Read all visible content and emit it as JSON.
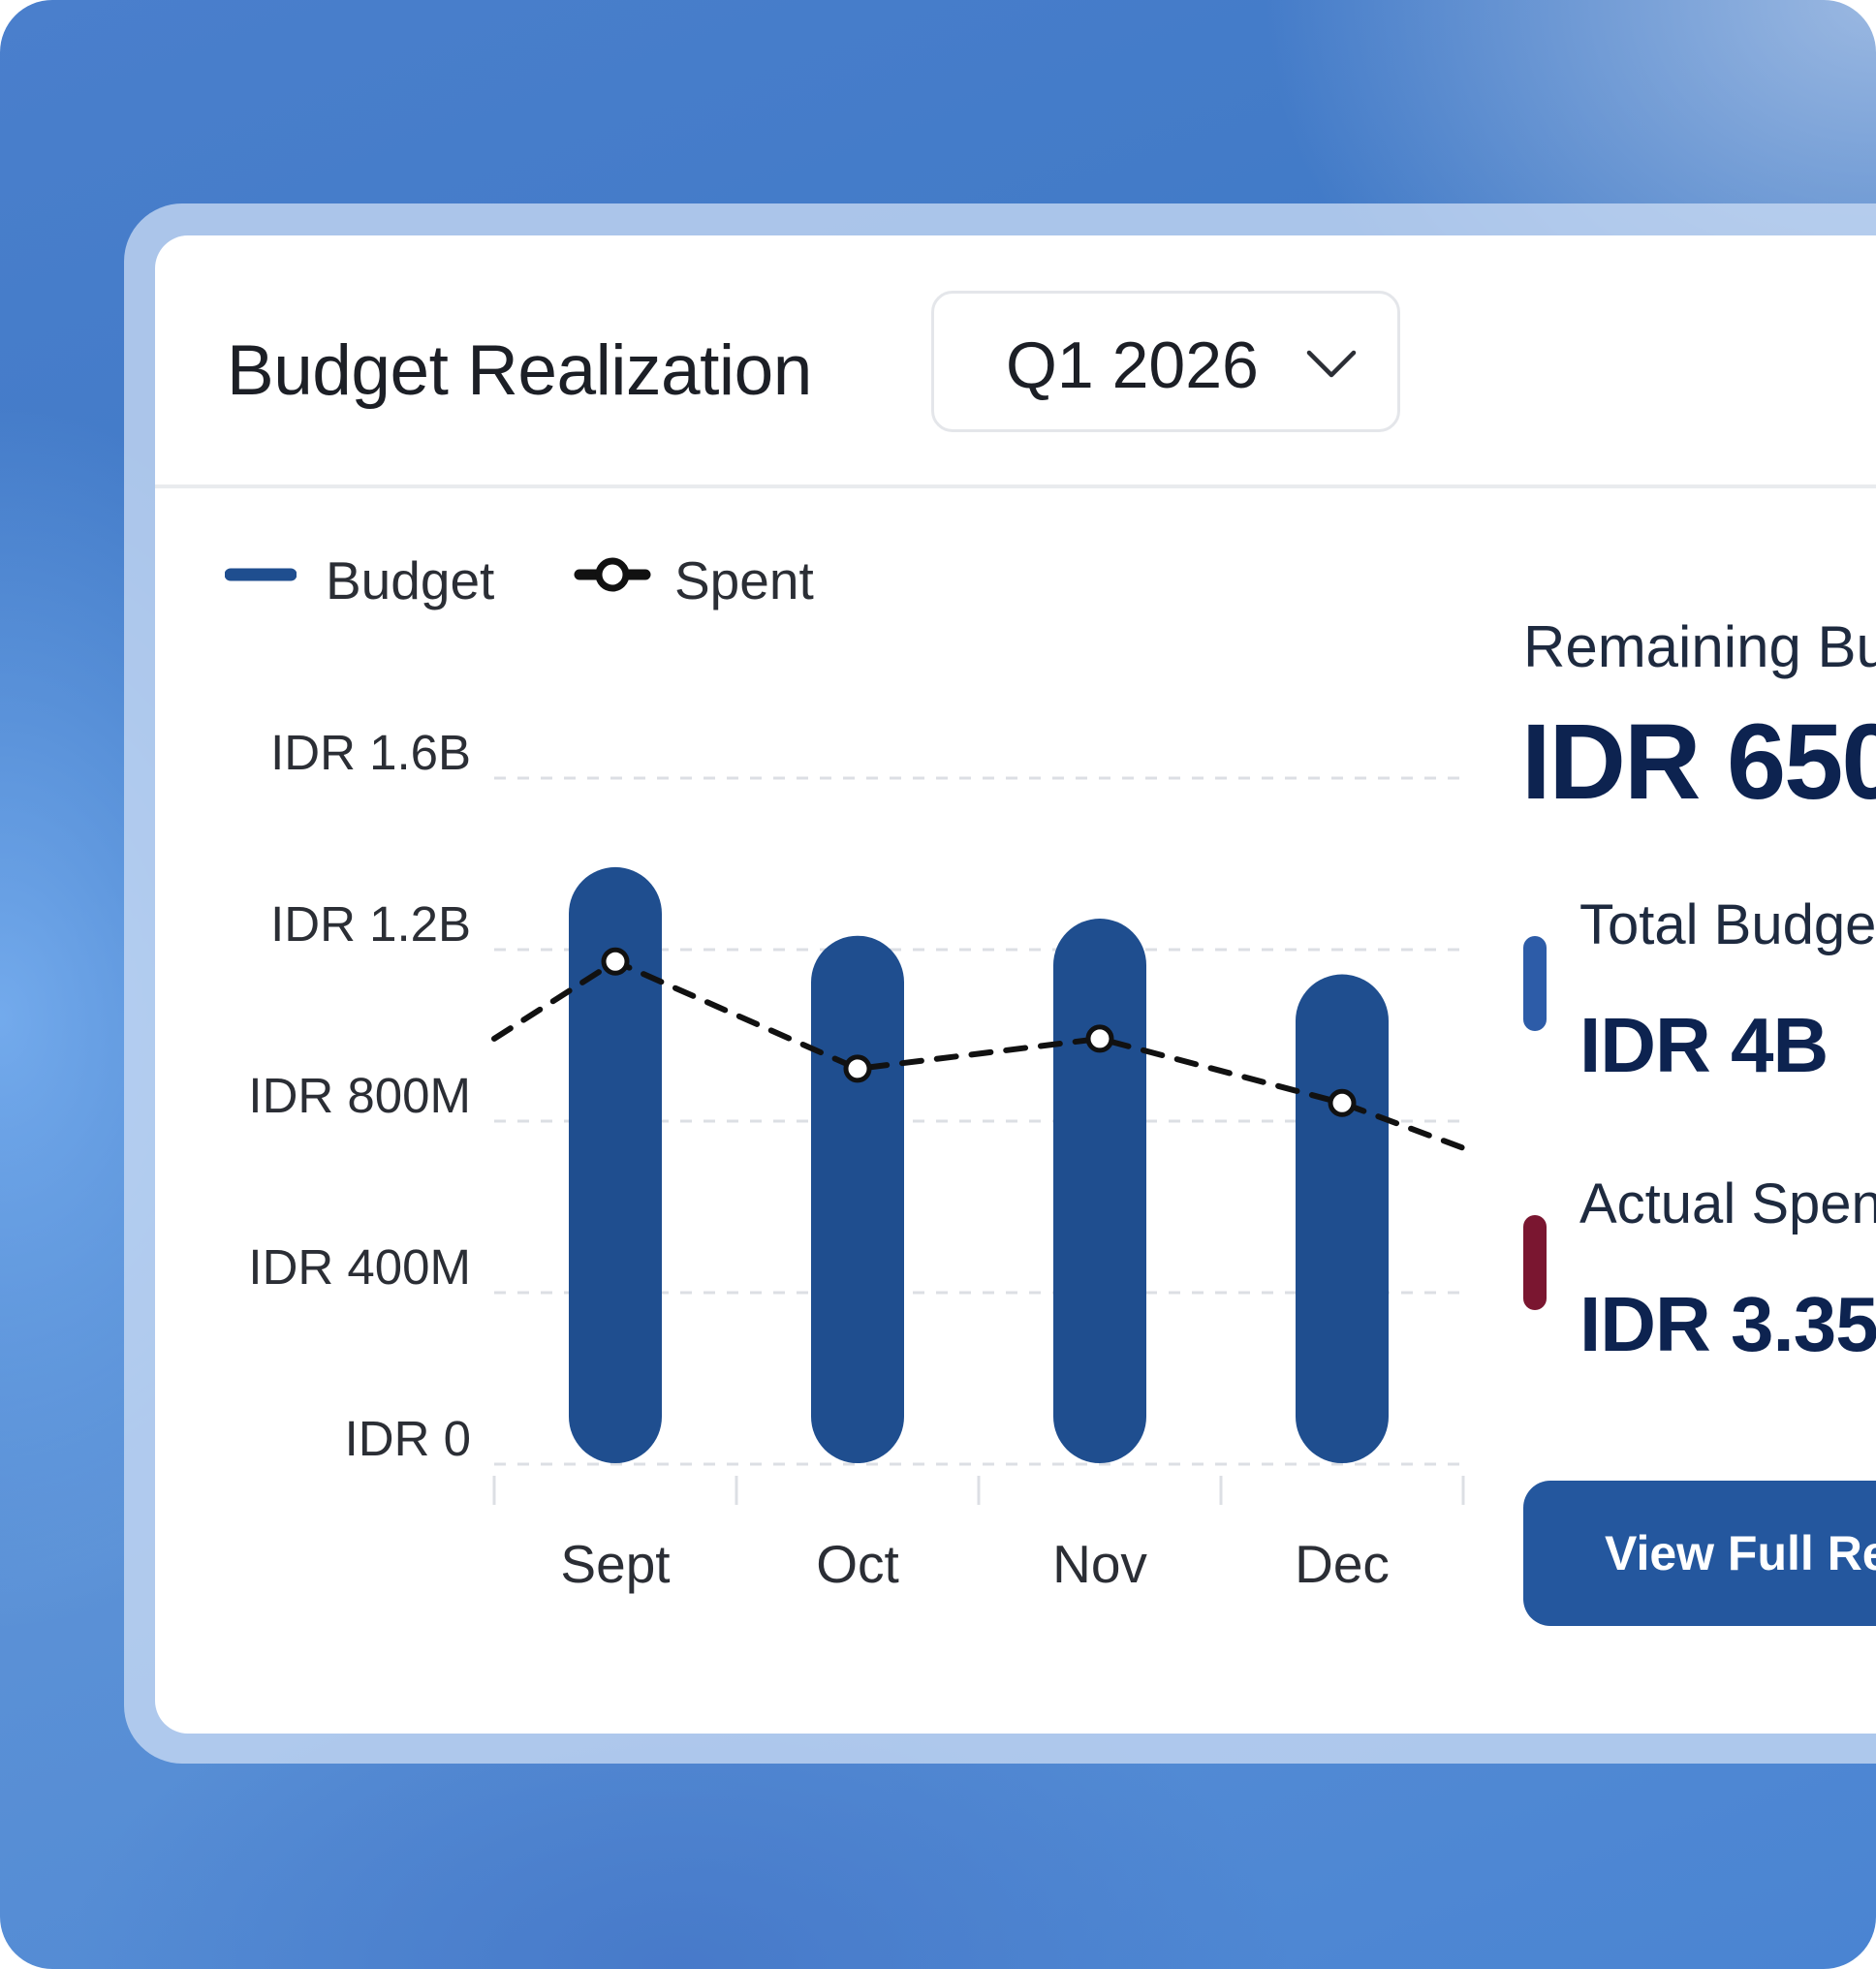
{
  "card": {
    "title": "Budget Realization",
    "period_select": {
      "value": "Q1 2026"
    }
  },
  "legend": {
    "budget_label": "Budget",
    "spent_label": "Spent"
  },
  "summary": {
    "remaining_label": "Remaining Bu",
    "remaining_value": "IDR 650",
    "total_budget_label": "Total Budge",
    "total_budget_value": "IDR 4B",
    "actual_spent_label": "Actual Spen",
    "actual_spent_value": "IDR 3.35",
    "view_report_label": "View Full Re"
  },
  "colors": {
    "budget_bar": "#1f4e8f",
    "spent_line": "#111111",
    "total_budget_accent": "#2d5ca8",
    "actual_spent_accent": "#7a1630",
    "button": "#24579e",
    "title_dark": "#0d2350"
  },
  "chart_data": {
    "type": "bar",
    "categories": [
      "Sept",
      "Oct",
      "Nov",
      "Dec"
    ],
    "y_tick_labels": [
      "IDR 0",
      "IDR 400M",
      "IDR 800M",
      "IDR 1.2B",
      "IDR 1.6B"
    ],
    "y_ticks": [
      0,
      400,
      800,
      1200,
      1600
    ],
    "ylim": [
      0,
      1600
    ],
    "unit": "IDR millions",
    "series": [
      {
        "name": "Budget",
        "type": "bar",
        "values": [
          1390,
          1230,
          1270,
          1140
        ]
      },
      {
        "name": "Spent",
        "type": "line",
        "style": "dashed",
        "values": [
          1170,
          920,
          990,
          840
        ],
        "line_extends_beyond": {
          "left": 990,
          "right": 730
        }
      }
    ],
    "grid": true,
    "legend_position": "top-left"
  }
}
